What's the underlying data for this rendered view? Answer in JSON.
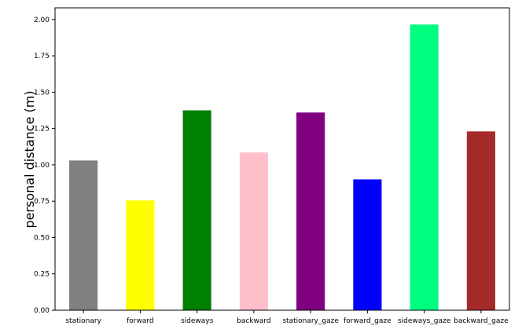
{
  "chart_data": {
    "type": "bar",
    "title": "",
    "xlabel": "",
    "ylabel": "personal distance (m)",
    "categories": [
      "stationary",
      "forward",
      "sideways",
      "backward",
      "stationary_gaze",
      "forward_gaze",
      "sideways_gaze",
      "backward_gaze"
    ],
    "values": [
      1.03,
      0.755,
      1.375,
      1.085,
      1.36,
      0.9,
      1.965,
      1.23
    ],
    "colors": [
      "#808080",
      "#ffff00",
      "#008000",
      "#ffc0cb",
      "#800080",
      "#0000ff",
      "#00ff7f",
      "#a52a2a"
    ],
    "ylim": [
      0,
      2.08
    ],
    "yticks": [
      "0.00",
      "0.25",
      "0.50",
      "0.75",
      "1.00",
      "1.25",
      "1.50",
      "1.75",
      "2.00"
    ],
    "grid": false,
    "legend": "none"
  }
}
